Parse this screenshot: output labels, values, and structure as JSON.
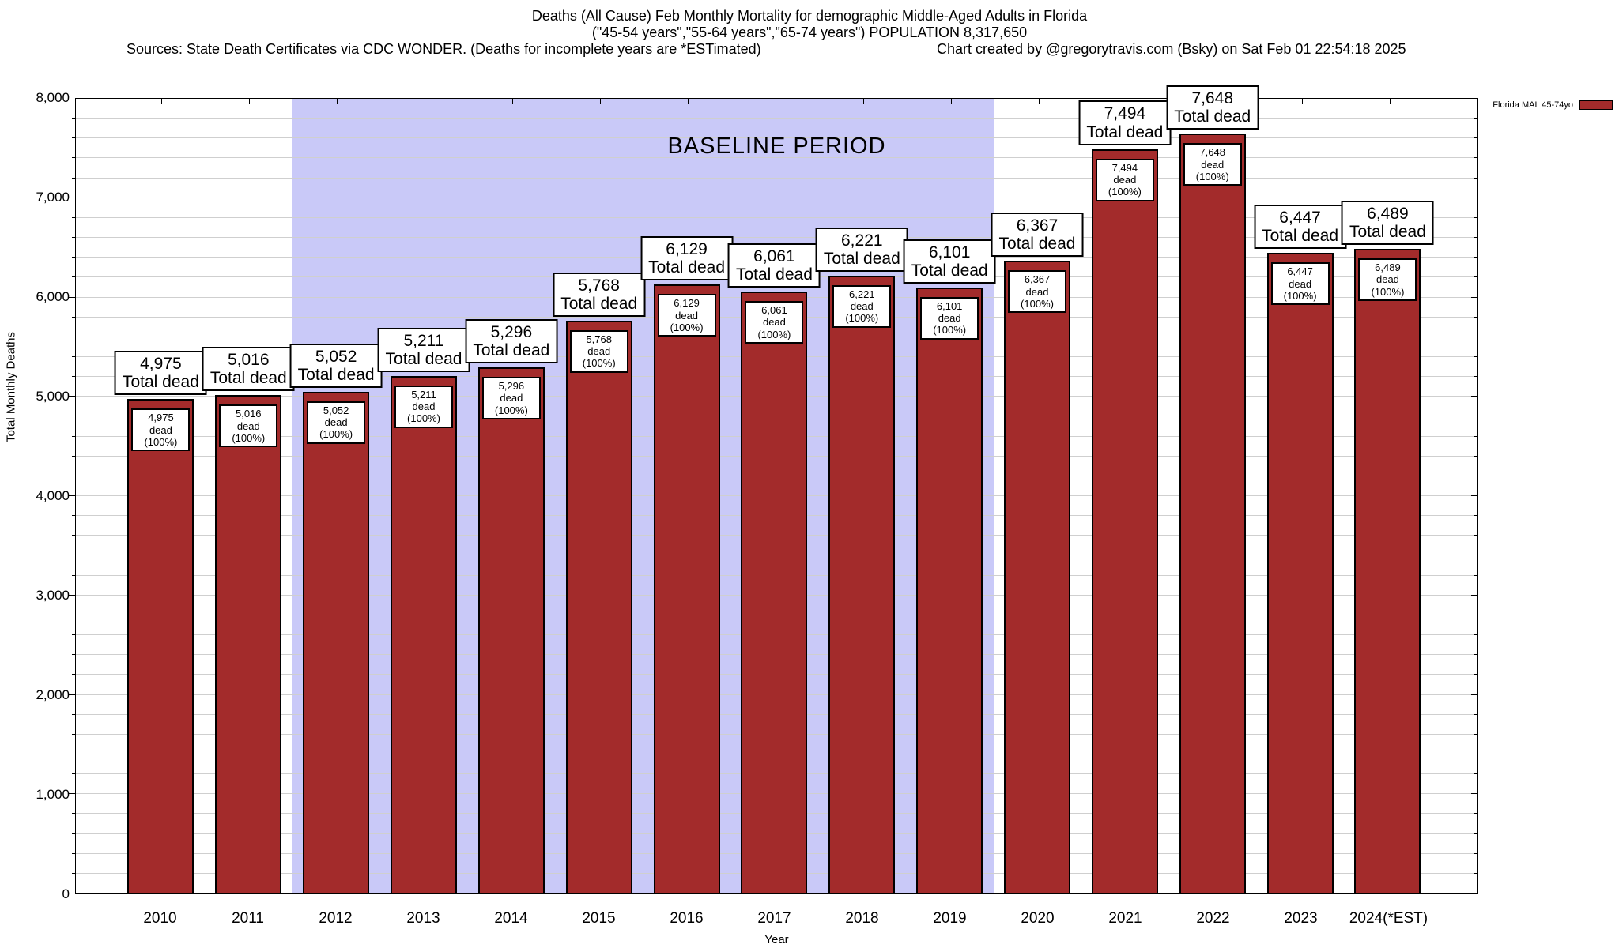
{
  "header": {
    "line1": "Deaths (All Cause) Feb Monthly Mortality for demographic Middle-Aged Adults in Florida",
    "line2": "(\"45-54 years\",\"55-64 years\",\"65-74 years\") POPULATION 8,317,650",
    "sources": "Sources: State Death Certificates via CDC WONDER. (Deaths for incomplete years are *ESTimated)",
    "credit": "Chart created by @gregorytravis.com (Bsky) on Sat Feb 01 22:54:18 2025"
  },
  "legend": {
    "label": "Florida MAL 45-74yo",
    "swatch_color": "#a32b2b"
  },
  "chart_data": {
    "type": "bar",
    "title": "Deaths (All Cause) Feb Monthly Mortality for demographic Middle-Aged Adults in Florida",
    "subtitle": "(\"45-54 years\",\"55-64 years\",\"65-74 years\") POPULATION 8,317,650",
    "xlabel": "Year",
    "ylabel": "Total Monthly Deaths",
    "ylim": [
      0,
      8000
    ],
    "ytick_step": 1000,
    "minor_grid_step": 200,
    "grid": true,
    "legend_position": "top-right-outside",
    "categories": [
      "2010",
      "2011",
      "2012",
      "2013",
      "2014",
      "2015",
      "2016",
      "2017",
      "2018",
      "2019",
      "2020",
      "2021",
      "2022",
      "2023",
      "2024(*EST)"
    ],
    "values": [
      4975,
      5016,
      5052,
      5211,
      5296,
      5768,
      6129,
      6061,
      6221,
      6101,
      6367,
      7494,
      7648,
      6447,
      6489
    ],
    "value_labels": [
      "4,975",
      "5,016",
      "5,052",
      "5,211",
      "5,296",
      "5,768",
      "6,129",
      "6,061",
      "6,221",
      "6,101",
      "6,367",
      "7,494",
      "7,648",
      "6,447",
      "6,489"
    ],
    "outer_label_suffix": "Total dead",
    "inner_label_suffix": "dead (100%)",
    "bar_color": "#a32b2b",
    "ytick_labels": [
      "0",
      "1,000",
      "2,000",
      "3,000",
      "4,000",
      "5,000",
      "6,000",
      "7,000",
      "8,000"
    ],
    "baseline_band": {
      "label": "BASELINE PERIOD",
      "from": "2012",
      "to": "2019",
      "color": "#c9c9f8"
    }
  }
}
